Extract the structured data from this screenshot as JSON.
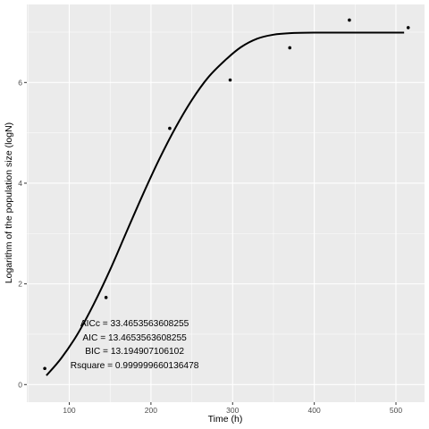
{
  "chart_data": {
    "type": "scatter",
    "title": "",
    "xlabel": "Time (h)",
    "ylabel": "Logarithm of the population size (logN)",
    "xlim": [
      48,
      535
    ],
    "ylim": [
      -0.35,
      7.55
    ],
    "x_ticks": [
      100,
      200,
      300,
      400,
      500
    ],
    "y_ticks": [
      0,
      2,
      4,
      6
    ],
    "grid": true,
    "colors": {
      "panel": "#ebebeb",
      "grid": "#ffffff",
      "points": "#000000",
      "curve": "#000000"
    },
    "points": [
      {
        "x": 70,
        "y": 0.32
      },
      {
        "x": 145,
        "y": 1.73
      },
      {
        "x": 223,
        "y": 5.09
      },
      {
        "x": 297,
        "y": 6.05
      },
      {
        "x": 370,
        "y": 6.69
      },
      {
        "x": 443,
        "y": 7.24
      },
      {
        "x": 515,
        "y": 7.09
      }
    ],
    "fit": {
      "type": "line",
      "curve": [
        {
          "x": 72,
          "y": 0.18
        },
        {
          "x": 90,
          "y": 0.52
        },
        {
          "x": 110,
          "y": 1.0
        },
        {
          "x": 130,
          "y": 1.6
        },
        {
          "x": 150,
          "y": 2.28
        },
        {
          "x": 170,
          "y": 3.03
        },
        {
          "x": 190,
          "y": 3.77
        },
        {
          "x": 210,
          "y": 4.47
        },
        {
          "x": 230,
          "y": 5.1
        },
        {
          "x": 250,
          "y": 5.65
        },
        {
          "x": 270,
          "y": 6.1
        },
        {
          "x": 290,
          "y": 6.43
        },
        {
          "x": 310,
          "y": 6.7
        },
        {
          "x": 330,
          "y": 6.87
        },
        {
          "x": 350,
          "y": 6.95
        },
        {
          "x": 370,
          "y": 6.98
        },
        {
          "x": 400,
          "y": 6.99
        },
        {
          "x": 450,
          "y": 6.99
        },
        {
          "x": 510,
          "y": 6.99
        }
      ]
    },
    "annotations": [
      {
        "text": "AICc = 33.4653563608255",
        "x": 180,
        "y": 1.22
      },
      {
        "text": "AIC = 13.4653563608255",
        "x": 180,
        "y": 0.94
      },
      {
        "text": "BIC = 13.194907106102",
        "x": 180,
        "y": 0.67
      },
      {
        "text": "Rsquare = 0.999999660136478",
        "x": 180,
        "y": 0.39
      }
    ]
  }
}
